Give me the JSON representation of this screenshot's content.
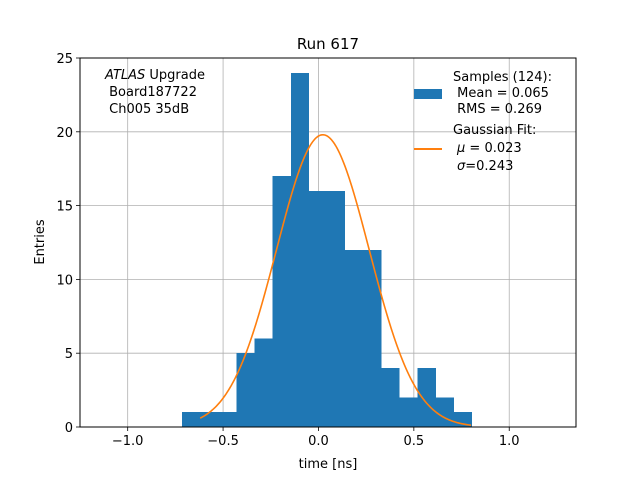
{
  "chart_data": {
    "type": "bar",
    "title": "Run 617",
    "xlabel": "time [ns]",
    "ylabel": "Entries",
    "xlim": [
      -1.25,
      1.35
    ],
    "ylim": [
      0,
      25
    ],
    "x_ticks": [
      {
        "value": -1.0,
        "label": "−1.0"
      },
      {
        "value": -0.5,
        "label": "−0.5"
      },
      {
        "value": 0.0,
        "label": "0.0"
      },
      {
        "value": 0.5,
        "label": "0.5"
      },
      {
        "value": 1.0,
        "label": "1.0"
      }
    ],
    "y_ticks": [
      {
        "value": 0,
        "label": "0"
      },
      {
        "value": 5,
        "label": "5"
      },
      {
        "value": 10,
        "label": "10"
      },
      {
        "value": 15,
        "label": "15"
      },
      {
        "value": 20,
        "label": "20"
      },
      {
        "value": 25,
        "label": "25"
      }
    ],
    "grid": true,
    "histogram": {
      "bin_edges": [
        -0.715,
        -0.62,
        -0.525,
        -0.43,
        -0.335,
        -0.24,
        -0.145,
        -0.05,
        0.045,
        0.14,
        0.235,
        0.33,
        0.425,
        0.52,
        0.615,
        0.71,
        0.805,
        0.9
      ],
      "counts": [
        1,
        1,
        1,
        5,
        6,
        17,
        24,
        16,
        16,
        12,
        12,
        4,
        2,
        4,
        2,
        1,
        0
      ],
      "color": "#1f77b4"
    },
    "fit": {
      "amplitude": 19.8,
      "mu": 0.023,
      "sigma": 0.243,
      "x_range": [
        -0.62,
        0.8
      ],
      "color": "#ff7f0e"
    },
    "legend": {
      "placement": "top-right",
      "samples_lines": [
        "Samples (124):",
        " Mean = 0.065",
        " RMS = 0.269"
      ],
      "fit_title": "Gaussian Fit:",
      "fit_mu_symbol": "μ",
      "fit_mu_value": " = 0.023",
      "fit_sigma_symbol": "σ",
      "fit_sigma_value": "=0.243"
    },
    "annotation": {
      "placement": "top-left",
      "experiment": "ATLAS",
      "experiment_suffix": " Upgrade",
      "board": " Board187722",
      "channel": " Ch005 35dB"
    }
  }
}
